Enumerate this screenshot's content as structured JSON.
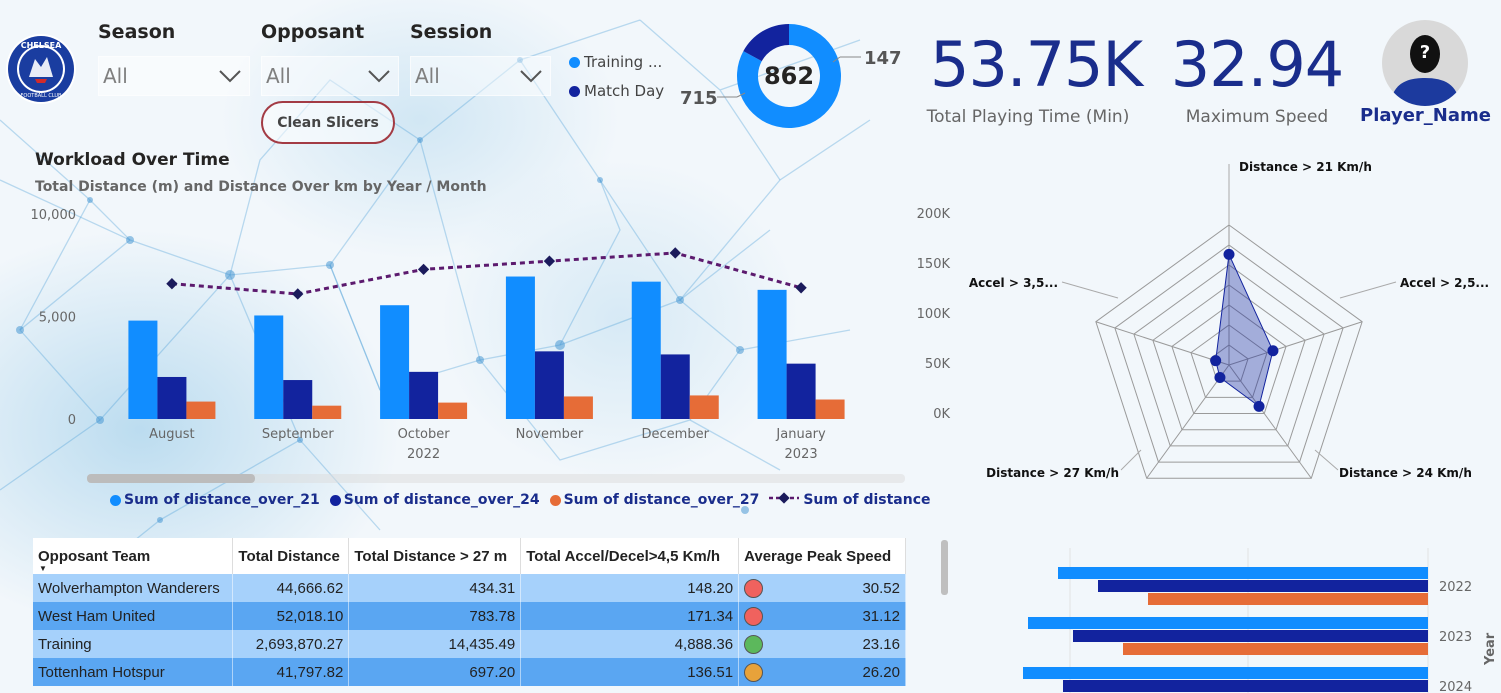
{
  "slicers": {
    "season": {
      "title": "Season",
      "value": "All"
    },
    "opposant": {
      "title": "Opposant",
      "value": "All"
    },
    "session": {
      "title": "Session",
      "value": "All"
    }
  },
  "clean_button": "Clean Slicers",
  "donut": {
    "total": "862",
    "legend": [
      {
        "label": "Training ...",
        "color": "#118dff"
      },
      {
        "label": "Match Day",
        "color": "#12239e"
      }
    ],
    "slices": [
      {
        "name": "Training",
        "value": 715,
        "label": "715",
        "color": "#118dff"
      },
      {
        "name": "Match Day",
        "value": 147,
        "label": "147",
        "color": "#12239e"
      }
    ]
  },
  "kpis": {
    "playing_time": {
      "value": "53.75K",
      "label": "Total Playing Time (Min)"
    },
    "max_speed": {
      "value": "32.94",
      "label": "Maximum Speed"
    }
  },
  "player": {
    "name": "Player_Name",
    "avatar_icon": "player-silhouette-icon"
  },
  "workload": {
    "title": "Workload Over Time",
    "subtitle": "Total Distance (m) and Distance Over km by Year / Month"
  },
  "chart_data": [
    {
      "type": "bar",
      "title": "Workload Over Time",
      "subtitle": "Total Distance (m) and Distance Over km by Year / Month",
      "categories": [
        "August",
        "September",
        "October",
        "November",
        "December",
        "January"
      ],
      "year_labels": [
        {
          "label": "2022",
          "span": [
            0,
            4
          ]
        },
        {
          "label": "2023",
          "span": [
            5,
            5
          ]
        }
      ],
      "y_ticks": [
        "10,000",
        "5,000",
        "0"
      ],
      "ylim": [
        0,
        10000
      ],
      "series": [
        {
          "name": "Sum of distance_over_21",
          "values": [
            4800,
            5050,
            5550,
            6950,
            6700,
            6300
          ],
          "color": "#118dff"
        },
        {
          "name": "Sum of distance_over_24",
          "values": [
            2050,
            1900,
            2300,
            3300,
            3150,
            2700
          ],
          "color": "#12239e"
        },
        {
          "name": "Sum of distance_over_27",
          "values": [
            850,
            650,
            800,
            1100,
            1150,
            950
          ],
          "color": "#e66c37"
        }
      ],
      "line_series": {
        "name": "Sum of distance",
        "values": [
          6600,
          6100,
          7300,
          7700,
          8100,
          6400
        ],
        "color": "#5c1a6e"
      }
    },
    {
      "type": "radar",
      "axes": [
        "Distance > 21 Km/h",
        "Accel > 2,5...",
        "Distance > 24 Km/h",
        "Distance > 27 Km/h",
        "Accel > 3,5..."
      ],
      "r_ticks": [
        "200K",
        "150K",
        "100K",
        "50K",
        "0K"
      ],
      "rlim": [
        0,
        200000
      ],
      "values": [
        158000,
        66000,
        73000,
        22000,
        20000
      ],
      "color": "#12239e"
    },
    {
      "type": "bar",
      "orientation": "horizontal",
      "categories": [
        "2022",
        "2023",
        "2024"
      ],
      "axis_title": "Year",
      "series": [
        {
          "name": "series-1",
          "values": [
            370,
            400,
            405
          ],
          "color": "#118dff"
        },
        {
          "name": "series-2",
          "values": [
            330,
            355,
            365
          ],
          "color": "#12239e"
        },
        {
          "name": "series-3",
          "values": [
            280,
            305,
            null
          ],
          "color": "#e66c37"
        }
      ]
    }
  ],
  "legend_bottom": [
    {
      "label": "Sum of distance_over_21",
      "color": "#118dff",
      "shape": "dot"
    },
    {
      "label": "Sum of distance_over_24",
      "color": "#12239e",
      "shape": "dot"
    },
    {
      "label": "Sum of distance_over_27",
      "color": "#e66c37",
      "shape": "dot"
    },
    {
      "label": "Sum of distance",
      "color": "#5c1a6e",
      "shape": "line-diamond"
    }
  ],
  "table": {
    "headers": [
      "Opposant Team",
      "Total Distance",
      "Total Distance > 27 m",
      "Total Accel/Decel>4,5 Km/h",
      "Average Peak Speed"
    ],
    "rows": [
      {
        "team": "Wolverhampton Wanderers",
        "dist": "44,666.62",
        "d27": "434.31",
        "accel": "148.20",
        "status": "#f0625e",
        "peak": "30.52"
      },
      {
        "team": "West Ham United",
        "dist": "52,018.10",
        "d27": "783.78",
        "accel": "171.34",
        "status": "#f0625e",
        "peak": "31.12"
      },
      {
        "team": "Training",
        "dist": "2,693,870.27",
        "d27": "14,435.49",
        "accel": "4,888.36",
        "status": "#5cb85c",
        "peak": "23.16"
      },
      {
        "team": "Tottenham Hotspur",
        "dist": "41,797.82",
        "d27": "697.20",
        "accel": "136.51",
        "status": "#e8a23a",
        "peak": "26.20"
      }
    ]
  }
}
